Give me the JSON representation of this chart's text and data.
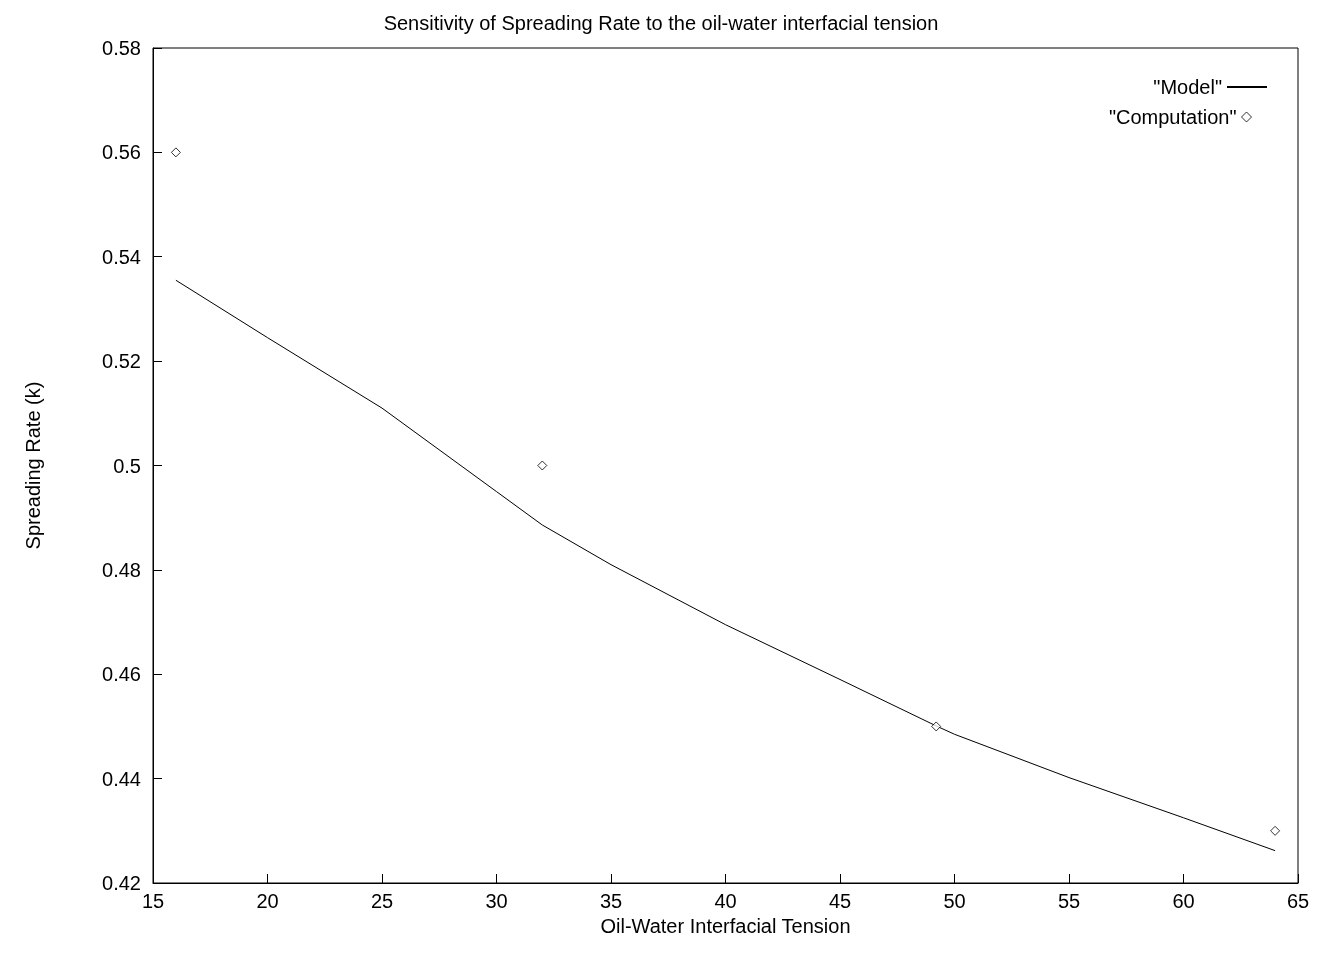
{
  "chart_data": {
    "type": "line",
    "title": "Sensitivity of Spreading Rate to the oil-water interfacial tension",
    "xlabel": "Oil-Water Interfacial Tension",
    "ylabel": "Spreading Rate (k)",
    "xlim": [
      15,
      65
    ],
    "xticks": [
      15,
      20,
      25,
      30,
      35,
      40,
      45,
      50,
      55,
      60,
      65
    ],
    "ylim": [
      0.42,
      0.58
    ],
    "yticks": [
      0.42,
      0.44,
      0.46,
      0.48,
      0.5,
      0.52,
      0.54,
      0.56,
      0.58
    ],
    "grid": false,
    "legend": "top right",
    "series": [
      {
        "name": "\"Model\"",
        "type": "line",
        "color": "#000000",
        "marker": "none",
        "line_style": "solid",
        "x": [
          16,
          20,
          25,
          30,
          32,
          35,
          40,
          45,
          49.2,
          50,
          55,
          60,
          64
        ],
        "values": [
          0.5355,
          0.5245,
          0.511,
          0.495,
          0.4886,
          0.481,
          0.4695,
          0.459,
          0.4501,
          0.4485,
          0.4402,
          0.4325,
          0.4262
        ]
      },
      {
        "name": "\"Computation\"",
        "type": "scatter",
        "color": "#000000",
        "marker": "diamond",
        "x": [
          16,
          32,
          49.2,
          64
        ],
        "values": [
          0.56,
          0.5,
          0.45,
          0.43
        ]
      }
    ]
  }
}
